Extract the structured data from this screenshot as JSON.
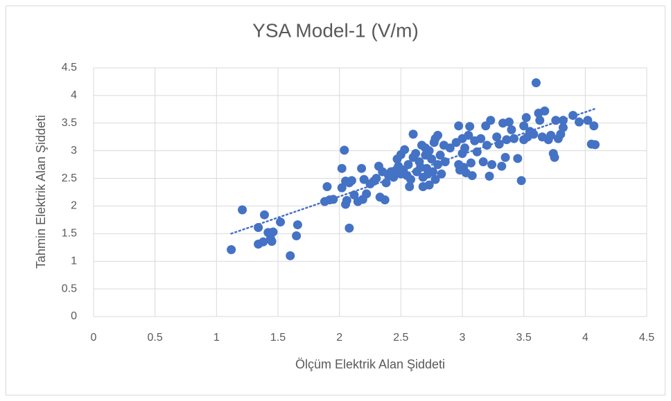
{
  "chart_data": {
    "type": "scatter",
    "title": "YSA Model-1 (V/m)",
    "x_label": "Ölçüm Elektrik Alan Şiddeti",
    "y_label": "Tahmin Elektrik Alan Şiddeti",
    "xlim": [
      0,
      4.5
    ],
    "ylim": [
      0,
      4.5
    ],
    "xticks": [
      0,
      0.5,
      1,
      1.5,
      2,
      2.5,
      3,
      3.5,
      4,
      4.5
    ],
    "yticks": [
      0,
      0.5,
      1,
      1.5,
      2,
      2.5,
      3,
      3.5,
      4,
      4.5
    ],
    "grid": true,
    "color": "#4472c4",
    "x": [
      1.12,
      1.21,
      1.34,
      1.34,
      1.38,
      1.39,
      1.42,
      1.44,
      1.45,
      1.46,
      1.52,
      1.6,
      1.65,
      1.66,
      1.88,
      1.9,
      1.92,
      1.95,
      2.02,
      2.02,
      2.04,
      2.05,
      2.05,
      2.06,
      2.08,
      2.08,
      2.1,
      2.12,
      2.15,
      2.18,
      2.19,
      2.2,
      2.22,
      2.25,
      2.28,
      2.3,
      2.32,
      2.33,
      2.35,
      2.37,
      2.38,
      2.4,
      2.42,
      2.44,
      2.46,
      2.47,
      2.48,
      2.5,
      2.5,
      2.52,
      2.53,
      2.55,
      2.56,
      2.57,
      2.58,
      2.6,
      2.6,
      2.62,
      2.63,
      2.65,
      2.66,
      2.67,
      2.68,
      2.68,
      2.7,
      2.7,
      2.71,
      2.72,
      2.73,
      2.73,
      2.75,
      2.76,
      2.77,
      2.78,
      2.78,
      2.8,
      2.8,
      2.82,
      2.83,
      2.85,
      2.86,
      2.9,
      2.95,
      2.97,
      2.97,
      2.98,
      3.0,
      3.0,
      3.01,
      3.02,
      3.03,
      3.05,
      3.06,
      3.07,
      3.08,
      3.1,
      3.12,
      3.15,
      3.17,
      3.19,
      3.2,
      3.22,
      3.23,
      3.24,
      3.28,
      3.3,
      3.32,
      3.33,
      3.35,
      3.36,
      3.38,
      3.4,
      3.42,
      3.45,
      3.48,
      3.5,
      3.5,
      3.52,
      3.53,
      3.55,
      3.58,
      3.6,
      3.62,
      3.63,
      3.65,
      3.67,
      3.7,
      3.72,
      3.74,
      3.75,
      3.76,
      3.78,
      3.8,
      3.82,
      3.82,
      3.9,
      3.95,
      4.02,
      4.05,
      4.07,
      4.08
    ],
    "y": [
      1.21,
      1.93,
      1.61,
      1.31,
      1.35,
      1.84,
      1.52,
      1.41,
      1.36,
      1.53,
      1.71,
      1.1,
      1.46,
      1.66,
      2.08,
      2.35,
      2.11,
      2.12,
      2.68,
      2.33,
      3.01,
      2.03,
      2.45,
      2.1,
      1.6,
      2.42,
      2.46,
      2.2,
      2.08,
      2.68,
      2.12,
      2.48,
      2.22,
      2.4,
      2.45,
      2.5,
      2.72,
      2.16,
      2.62,
      2.11,
      2.42,
      2.55,
      2.62,
      2.52,
      2.65,
      2.85,
      2.72,
      2.58,
      2.93,
      2.65,
      3.02,
      2.55,
      2.75,
      2.35,
      2.48,
      3.3,
      2.88,
      2.95,
      2.62,
      2.8,
      2.7,
      3.1,
      2.35,
      2.52,
      2.92,
      3.05,
      2.68,
      2.58,
      2.38,
      3.0,
      2.85,
      2.62,
      3.15,
      3.22,
      2.48,
      2.75,
      3.28,
      2.92,
      2.58,
      3.1,
      2.8,
      3.05,
      3.15,
      2.75,
      3.45,
      2.65,
      3.22,
      2.95,
      2.7,
      3.05,
      2.6,
      3.28,
      3.44,
      2.78,
      2.55,
      3.18,
      2.98,
      3.22,
      2.8,
      3.45,
      3.1,
      2.54,
      3.55,
      2.75,
      3.25,
      3.12,
      2.72,
      3.5,
      2.88,
      3.2,
      3.52,
      3.38,
      3.22,
      2.86,
      2.46,
      3.2,
      3.45,
      3.6,
      3.25,
      3.35,
      3.3,
      4.23,
      3.68,
      3.55,
      3.25,
      3.72,
      3.2,
      3.28,
      2.95,
      2.88,
      3.55,
      3.22,
      3.3,
      3.55,
      3.42,
      3.64,
      3.52,
      3.55,
      3.12,
      3.45,
      3.11
    ],
    "trendline": {
      "x": [
        1.12,
        4.08
      ],
      "y": [
        1.5,
        3.76
      ]
    }
  }
}
